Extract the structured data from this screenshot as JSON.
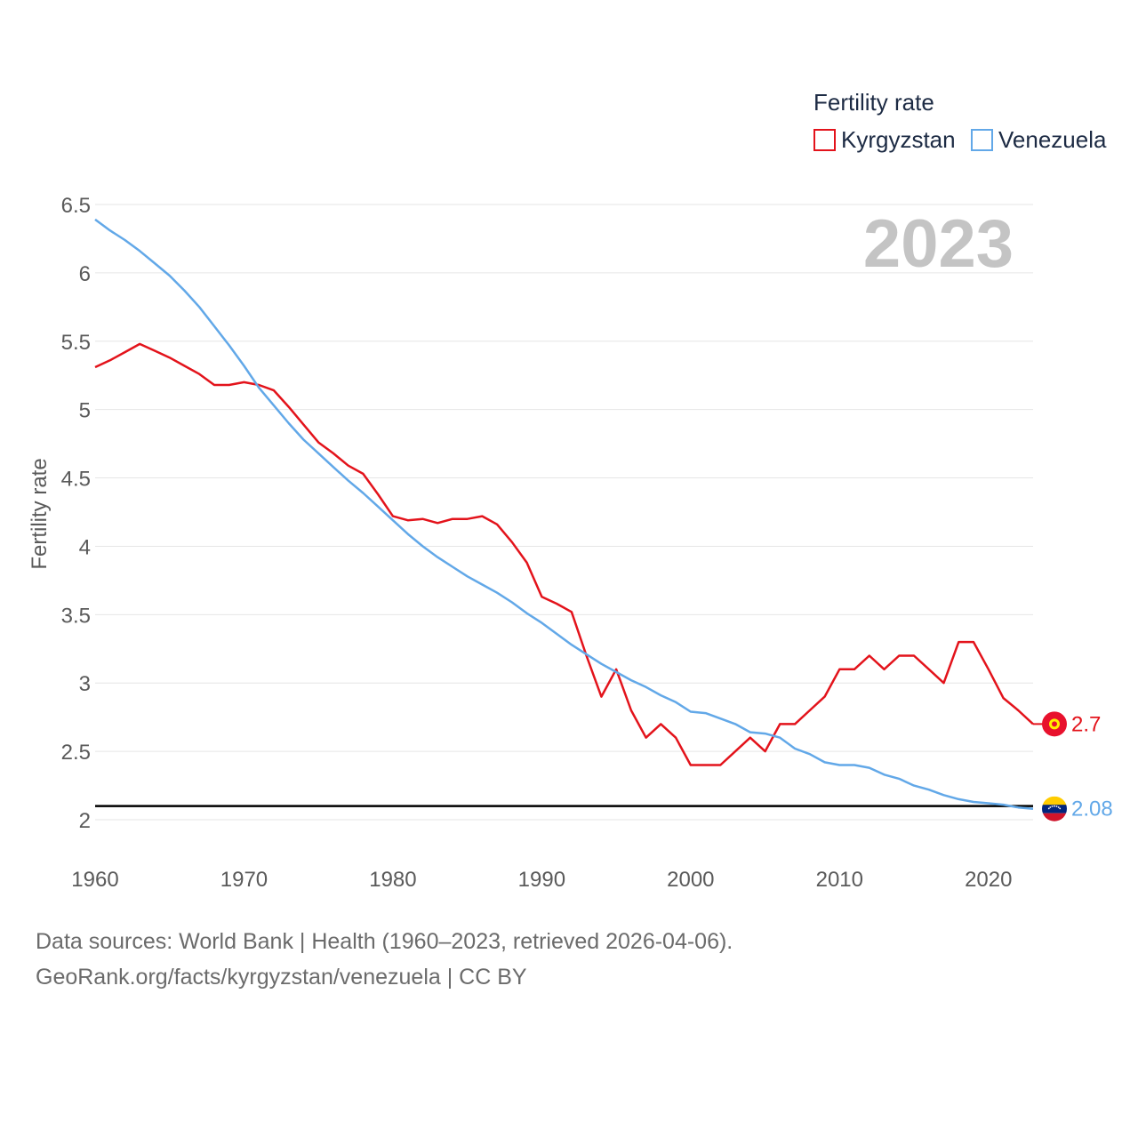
{
  "chart_data": {
    "type": "line",
    "title": "",
    "xlabel": "",
    "ylabel": "Fertility rate",
    "xlim": [
      1960,
      2023
    ],
    "ylim": [
      1.8,
      6.5
    ],
    "yticks": [
      2,
      2.5,
      3,
      3.5,
      4,
      4.5,
      5,
      5.5,
      6,
      6.5
    ],
    "xticks": [
      1960,
      1970,
      1980,
      1990,
      2000,
      2010,
      2020
    ],
    "year_label": "2023",
    "legend_title": "Fertility rate",
    "reference_line": 2.1,
    "x": [
      1960,
      1961,
      1962,
      1963,
      1964,
      1965,
      1966,
      1967,
      1968,
      1969,
      1970,
      1971,
      1972,
      1973,
      1974,
      1975,
      1976,
      1977,
      1978,
      1979,
      1980,
      1981,
      1982,
      1983,
      1984,
      1985,
      1986,
      1987,
      1988,
      1989,
      1990,
      1991,
      1992,
      1993,
      1994,
      1995,
      1996,
      1997,
      1998,
      1999,
      2000,
      2001,
      2002,
      2003,
      2004,
      2005,
      2006,
      2007,
      2008,
      2009,
      2010,
      2011,
      2012,
      2013,
      2014,
      2015,
      2016,
      2017,
      2018,
      2019,
      2020,
      2021,
      2022,
      2023
    ],
    "series": [
      {
        "name": "Kyrgyzstan",
        "color": "#e3131b",
        "end_label": "2.7",
        "flag": "kyrgyzstan-flag",
        "values": [
          5.31,
          5.36,
          5.42,
          5.48,
          5.43,
          5.38,
          5.32,
          5.26,
          5.18,
          5.18,
          5.2,
          5.18,
          5.14,
          5.02,
          4.89,
          4.76,
          4.68,
          4.59,
          4.53,
          4.38,
          4.22,
          4.19,
          4.2,
          4.17,
          4.2,
          4.2,
          4.22,
          4.16,
          4.03,
          3.88,
          3.63,
          3.58,
          3.52,
          3.2,
          2.9,
          3.1,
          2.8,
          2.6,
          2.7,
          2.6,
          2.4,
          2.4,
          2.4,
          2.5,
          2.6,
          2.5,
          2.7,
          2.7,
          2.8,
          2.9,
          3.1,
          3.1,
          3.2,
          3.1,
          3.2,
          3.2,
          3.1,
          3.0,
          3.3,
          3.3,
          3.1,
          2.89,
          2.8,
          2.7
        ]
      },
      {
        "name": "Venezuela",
        "color": "#62a8e8",
        "end_label": "2.08",
        "flag": "venezuela-flag",
        "values": [
          6.39,
          6.31,
          6.24,
          6.16,
          6.07,
          5.98,
          5.87,
          5.75,
          5.61,
          5.47,
          5.32,
          5.16,
          5.03,
          4.9,
          4.78,
          4.68,
          4.58,
          4.48,
          4.39,
          4.29,
          4.19,
          4.09,
          4.0,
          3.92,
          3.85,
          3.78,
          3.72,
          3.66,
          3.59,
          3.51,
          3.44,
          3.36,
          3.28,
          3.21,
          3.14,
          3.08,
          3.02,
          2.97,
          2.91,
          2.86,
          2.79,
          2.78,
          2.74,
          2.7,
          2.64,
          2.63,
          2.6,
          2.52,
          2.48,
          2.42,
          2.4,
          2.4,
          2.38,
          2.33,
          2.3,
          2.25,
          2.22,
          2.18,
          2.15,
          2.13,
          2.12,
          2.11,
          2.09,
          2.08
        ]
      }
    ]
  },
  "footer": {
    "line1": "Data sources: World Bank | Health (1960–2023, retrieved 2026-04-06).",
    "line2": "GeoRank.org/facts/kyrgyzstan/venezuela | CC BY"
  }
}
